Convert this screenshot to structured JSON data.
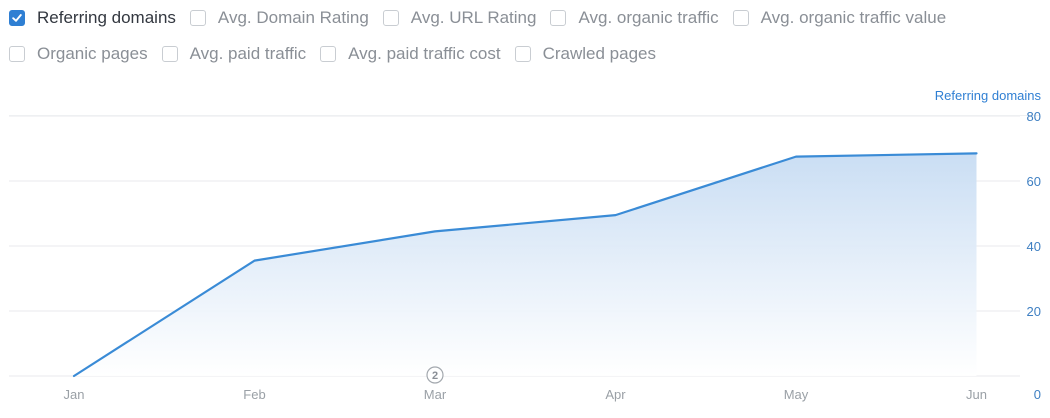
{
  "metrics": {
    "row1": [
      {
        "label": "Referring domains",
        "checked": true
      },
      {
        "label": "Avg. Domain Rating",
        "checked": false
      },
      {
        "label": "Avg. URL Rating",
        "checked": false
      },
      {
        "label": "Avg. organic traffic",
        "checked": false
      },
      {
        "label": "Avg. organic traffic value",
        "checked": false
      }
    ],
    "row2": [
      {
        "label": "Organic pages",
        "checked": false
      },
      {
        "label": "Avg. paid traffic",
        "checked": false
      },
      {
        "label": "Avg. paid traffic cost",
        "checked": false
      },
      {
        "label": "Crawled pages",
        "checked": false
      }
    ]
  },
  "colors": {
    "accent": "#2f7fd3",
    "line": "#3a8bd6",
    "fill_top": "#c7dcf3",
    "axis_text": "#9aa0a6",
    "y_tick_text": "#3e7fc2",
    "grid": "#e8eaed"
  },
  "chart_data": {
    "type": "area",
    "series_axis_title": "Referring domains",
    "categories": [
      "Jan",
      "Feb",
      "Mar",
      "Apr",
      "May",
      "Jun"
    ],
    "series": [
      {
        "name": "Referring domains",
        "values": [
          0,
          35.5,
          44.5,
          49.5,
          67.5,
          68.5
        ]
      }
    ],
    "y_ticks": [
      "0",
      "20",
      "40",
      "60",
      "80"
    ],
    "ylim": [
      0,
      80
    ],
    "y_axis_side": "right",
    "grid": true,
    "annotations": [
      {
        "x": "Mar",
        "text": "2"
      }
    ]
  }
}
